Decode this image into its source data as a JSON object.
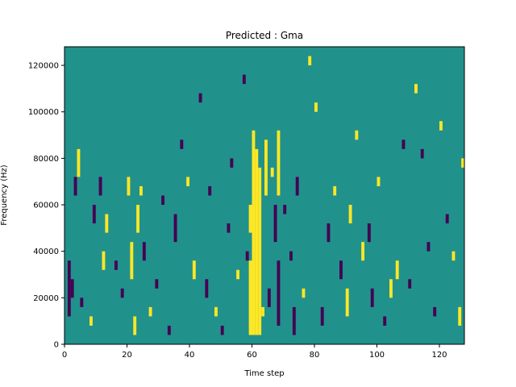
{
  "chart_data": {
    "type": "heatmap",
    "title": "Predicted : Gma",
    "xlabel": "Time step",
    "ylabel": "Frequency (Hz)",
    "xlim": [
      0,
      128
    ],
    "ylim": [
      0,
      128000
    ],
    "xticks": [
      "0",
      "20",
      "40",
      "60",
      "80",
      "100",
      "120"
    ],
    "yticks": [
      "0",
      "20000",
      "40000",
      "60000",
      "80000",
      "100000",
      "120000"
    ],
    "colors": {
      "low": "#440154",
      "mid": "#21918c",
      "high": "#fde725"
    },
    "background_value": 0,
    "rows": 32,
    "columns": 128,
    "cells": [
      {
        "t": 60,
        "f_from": 4000,
        "f_to": 92000,
        "v": 1
      },
      {
        "t": 61,
        "f_from": 4000,
        "f_to": 84000,
        "v": 1
      },
      {
        "t": 62,
        "f_from": 4000,
        "f_to": 76000,
        "v": 1
      },
      {
        "t": 59,
        "f_from": 4000,
        "f_to": 36000,
        "v": 1
      },
      {
        "t": 59,
        "f_from": 48000,
        "f_to": 60000,
        "v": 1
      },
      {
        "t": 64,
        "f_from": 64000,
        "f_to": 88000,
        "v": 1
      },
      {
        "t": 68,
        "f_from": 64000,
        "f_to": 92000,
        "v": 1
      },
      {
        "t": 67,
        "f_from": 44000,
        "f_to": 60000,
        "v": -1
      },
      {
        "t": 68,
        "f_from": 8000,
        "f_to": 36000,
        "v": -1
      },
      {
        "t": 73,
        "f_from": 4000,
        "f_to": 16000,
        "v": -1
      },
      {
        "t": 74,
        "f_from": 64000,
        "f_to": 72000,
        "v": -1
      },
      {
        "t": 1,
        "f_from": 12000,
        "f_to": 36000,
        "v": -1
      },
      {
        "t": 2,
        "f_from": 20000,
        "f_to": 28000,
        "v": -1
      },
      {
        "t": 3,
        "f_from": 64000,
        "f_to": 72000,
        "v": -1
      },
      {
        "t": 4,
        "f_from": 72000,
        "f_to": 84000,
        "v": 1
      },
      {
        "t": 5,
        "f_from": 16000,
        "f_to": 20000,
        "v": -1
      },
      {
        "t": 8,
        "f_from": 8000,
        "f_to": 12000,
        "v": 1
      },
      {
        "t": 9,
        "f_from": 52000,
        "f_to": 60000,
        "v": -1
      },
      {
        "t": 11,
        "f_from": 64000,
        "f_to": 72000,
        "v": -1
      },
      {
        "t": 12,
        "f_from": 32000,
        "f_to": 40000,
        "v": 1
      },
      {
        "t": 13,
        "f_from": 48000,
        "f_to": 56000,
        "v": 1
      },
      {
        "t": 16,
        "f_from": 32000,
        "f_to": 36000,
        "v": -1
      },
      {
        "t": 18,
        "f_from": 20000,
        "f_to": 24000,
        "v": -1
      },
      {
        "t": 20,
        "f_from": 64000,
        "f_to": 72000,
        "v": 1
      },
      {
        "t": 21,
        "f_from": 28000,
        "f_to": 44000,
        "v": 1
      },
      {
        "t": 22,
        "f_from": 4000,
        "f_to": 12000,
        "v": 1
      },
      {
        "t": 23,
        "f_from": 48000,
        "f_to": 60000,
        "v": 1
      },
      {
        "t": 24,
        "f_from": 64000,
        "f_to": 68000,
        "v": 1
      },
      {
        "t": 25,
        "f_from": 36000,
        "f_to": 44000,
        "v": -1
      },
      {
        "t": 27,
        "f_from": 12000,
        "f_to": 16000,
        "v": 1
      },
      {
        "t": 29,
        "f_from": 24000,
        "f_to": 28000,
        "v": -1
      },
      {
        "t": 31,
        "f_from": 60000,
        "f_to": 64000,
        "v": -1
      },
      {
        "t": 33,
        "f_from": 4000,
        "f_to": 8000,
        "v": -1
      },
      {
        "t": 35,
        "f_from": 44000,
        "f_to": 56000,
        "v": -1
      },
      {
        "t": 37,
        "f_from": 84000,
        "f_to": 88000,
        "v": -1
      },
      {
        "t": 39,
        "f_from": 68000,
        "f_to": 72000,
        "v": 1
      },
      {
        "t": 41,
        "f_from": 28000,
        "f_to": 36000,
        "v": 1
      },
      {
        "t": 43,
        "f_from": 104000,
        "f_to": 108000,
        "v": -1
      },
      {
        "t": 45,
        "f_from": 20000,
        "f_to": 28000,
        "v": -1
      },
      {
        "t": 46,
        "f_from": 64000,
        "f_to": 68000,
        "v": -1
      },
      {
        "t": 48,
        "f_from": 12000,
        "f_to": 16000,
        "v": 1
      },
      {
        "t": 50,
        "f_from": 4000,
        "f_to": 8000,
        "v": -1
      },
      {
        "t": 52,
        "f_from": 48000,
        "f_to": 52000,
        "v": -1
      },
      {
        "t": 53,
        "f_from": 76000,
        "f_to": 80000,
        "v": -1
      },
      {
        "t": 55,
        "f_from": 28000,
        "f_to": 32000,
        "v": 1
      },
      {
        "t": 57,
        "f_from": 112000,
        "f_to": 116000,
        "v": -1
      },
      {
        "t": 58,
        "f_from": 36000,
        "f_to": 40000,
        "v": -1
      },
      {
        "t": 63,
        "f_from": 12000,
        "f_to": 16000,
        "v": 1
      },
      {
        "t": 65,
        "f_from": 16000,
        "f_to": 24000,
        "v": -1
      },
      {
        "t": 66,
        "f_from": 72000,
        "f_to": 76000,
        "v": 1
      },
      {
        "t": 70,
        "f_from": 56000,
        "f_to": 60000,
        "v": -1
      },
      {
        "t": 72,
        "f_from": 36000,
        "f_to": 40000,
        "v": -1
      },
      {
        "t": 76,
        "f_from": 20000,
        "f_to": 24000,
        "v": 1
      },
      {
        "t": 78,
        "f_from": 120000,
        "f_to": 124000,
        "v": 1
      },
      {
        "t": 80,
        "f_from": 100000,
        "f_to": 104000,
        "v": 1
      },
      {
        "t": 82,
        "f_from": 8000,
        "f_to": 16000,
        "v": -1
      },
      {
        "t": 84,
        "f_from": 44000,
        "f_to": 52000,
        "v": -1
      },
      {
        "t": 86,
        "f_from": 64000,
        "f_to": 68000,
        "v": 1
      },
      {
        "t": 88,
        "f_from": 28000,
        "f_to": 36000,
        "v": -1
      },
      {
        "t": 90,
        "f_from": 12000,
        "f_to": 24000,
        "v": 1
      },
      {
        "t": 91,
        "f_from": 52000,
        "f_to": 60000,
        "v": 1
      },
      {
        "t": 93,
        "f_from": 88000,
        "f_to": 92000,
        "v": 1
      },
      {
        "t": 95,
        "f_from": 36000,
        "f_to": 44000,
        "v": 1
      },
      {
        "t": 97,
        "f_from": 44000,
        "f_to": 52000,
        "v": -1
      },
      {
        "t": 98,
        "f_from": 16000,
        "f_to": 24000,
        "v": -1
      },
      {
        "t": 100,
        "f_from": 68000,
        "f_to": 72000,
        "v": 1
      },
      {
        "t": 102,
        "f_from": 8000,
        "f_to": 12000,
        "v": -1
      },
      {
        "t": 104,
        "f_from": 20000,
        "f_to": 28000,
        "v": 1
      },
      {
        "t": 106,
        "f_from": 28000,
        "f_to": 36000,
        "v": 1
      },
      {
        "t": 108,
        "f_from": 84000,
        "f_to": 88000,
        "v": -1
      },
      {
        "t": 110,
        "f_from": 24000,
        "f_to": 28000,
        "v": -1
      },
      {
        "t": 112,
        "f_from": 108000,
        "f_to": 112000,
        "v": 1
      },
      {
        "t": 114,
        "f_from": 80000,
        "f_to": 84000,
        "v": -1
      },
      {
        "t": 116,
        "f_from": 40000,
        "f_to": 44000,
        "v": -1
      },
      {
        "t": 118,
        "f_from": 12000,
        "f_to": 16000,
        "v": -1
      },
      {
        "t": 120,
        "f_from": 92000,
        "f_to": 96000,
        "v": 1
      },
      {
        "t": 122,
        "f_from": 52000,
        "f_to": 56000,
        "v": -1
      },
      {
        "t": 124,
        "f_from": 36000,
        "f_to": 40000,
        "v": 1
      },
      {
        "t": 126,
        "f_from": 8000,
        "f_to": 16000,
        "v": 1
      },
      {
        "t": 127,
        "f_from": 76000,
        "f_to": 80000,
        "v": 1
      }
    ]
  }
}
